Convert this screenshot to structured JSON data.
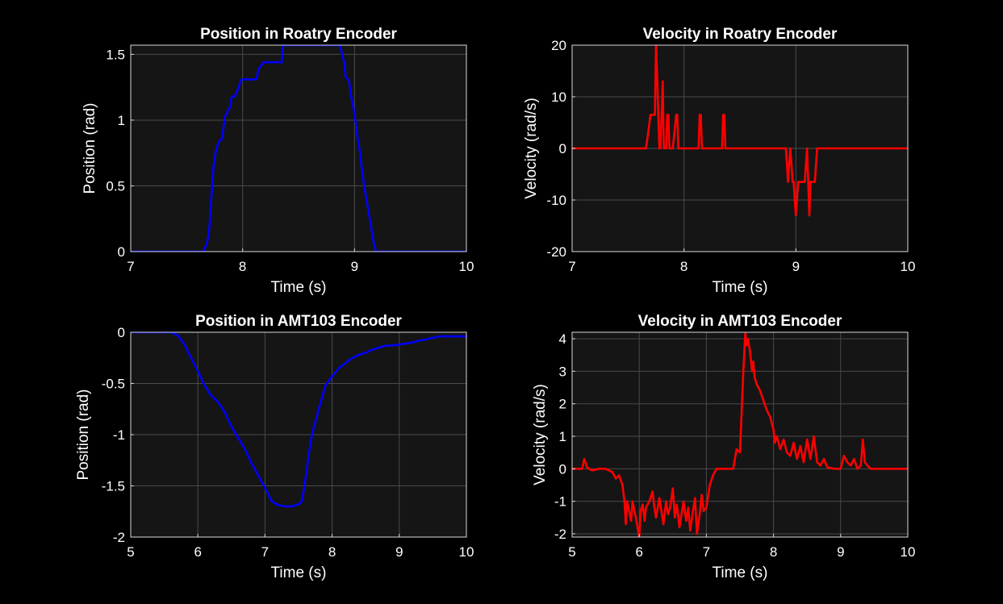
{
  "chart_data": [
    {
      "type": "line",
      "title": "Position in Roatry Encoder",
      "xlabel": "Time (s)",
      "ylabel": "Position (rad)",
      "xlim": [
        7,
        10
      ],
      "ylim": [
        0,
        1.57
      ],
      "xticks": [
        "7",
        "8",
        "9",
        "10"
      ],
      "yticks": [
        "0",
        "0.5",
        "1",
        "1.5"
      ],
      "grid": true,
      "color": "#0000ff",
      "series": [
        {
          "x": [
            7.0,
            7.65,
            7.68,
            7.7,
            7.72,
            7.74,
            7.76,
            7.78,
            7.8,
            7.81,
            7.82,
            7.83,
            7.84,
            7.85,
            7.86,
            7.87,
            7.89,
            7.9,
            7.91,
            7.93,
            7.95,
            7.97,
            7.98,
            8.0,
            8.01,
            8.12,
            8.13,
            8.14,
            8.15,
            8.17,
            8.19,
            8.35,
            8.36,
            8.87,
            8.89,
            8.91,
            8.92,
            8.95,
            8.97,
            9.0,
            9.03,
            9.05,
            9.07,
            9.09,
            9.11,
            9.13,
            9.15,
            9.17,
            9.19,
            10.0
          ],
          "y": [
            0,
            0,
            0.06,
            0.15,
            0.4,
            0.65,
            0.76,
            0.82,
            0.85,
            0.85,
            0.87,
            0.95,
            1.02,
            1.04,
            1.05,
            1.08,
            1.1,
            1.17,
            1.18,
            1.18,
            1.22,
            1.26,
            1.3,
            1.31,
            1.31,
            1.31,
            1.34,
            1.38,
            1.4,
            1.42,
            1.44,
            1.44,
            1.57,
            1.57,
            1.5,
            1.43,
            1.33,
            1.3,
            1.18,
            1.05,
            0.85,
            0.75,
            0.6,
            0.48,
            0.38,
            0.28,
            0.18,
            0.08,
            0,
            0
          ]
        }
      ]
    },
    {
      "type": "line",
      "title": "Velocity in Roatry Encoder",
      "xlabel": "Time (s)",
      "ylabel": "Velocity (rad/s)",
      "xlim": [
        7,
        10
      ],
      "ylim": [
        -20,
        20
      ],
      "xticks": [
        "7",
        "8",
        "9",
        "10"
      ],
      "yticks": [
        "-20",
        "-10",
        "0",
        "10",
        "20"
      ],
      "grid": true,
      "color": "#ff0000",
      "series": [
        {
          "x": [
            7.0,
            7.66,
            7.68,
            7.7,
            7.72,
            7.74,
            7.75,
            7.76,
            7.77,
            7.78,
            7.79,
            7.8,
            7.81,
            7.82,
            7.83,
            7.84,
            7.85,
            7.86,
            7.87,
            7.88,
            7.89,
            7.9,
            7.93,
            7.94,
            7.95,
            7.96,
            8.13,
            8.14,
            8.15,
            8.16,
            8.34,
            8.35,
            8.36,
            8.37,
            8.91,
            8.92,
            8.93,
            8.94,
            8.95,
            8.96,
            8.97,
            8.98,
            8.99,
            9.0,
            9.01,
            9.02,
            9.03,
            9.04,
            9.07,
            9.08,
            9.09,
            9.1,
            9.11,
            9.12,
            9.13,
            9.14,
            9.17,
            9.18,
            9.19,
            10.0
          ],
          "y": [
            0,
            0,
            3,
            6.5,
            6.5,
            6.5,
            20,
            14,
            6.5,
            0,
            0,
            6.5,
            13,
            0,
            0,
            0,
            6.5,
            6.5,
            0,
            0,
            0,
            0,
            6.5,
            6.5,
            0,
            0,
            0,
            6.5,
            6.5,
            0,
            0,
            6.5,
            6.5,
            0,
            0,
            -3,
            -6.5,
            -3,
            0,
            -3,
            -6.5,
            -6.5,
            -10,
            -13,
            -10,
            -6.5,
            -6.5,
            -6.5,
            -6.5,
            -6.5,
            -3,
            0,
            -6.5,
            -13,
            -6.5,
            -6.5,
            -6.5,
            -3,
            0,
            0
          ]
        }
      ]
    },
    {
      "type": "line",
      "title": "Position in AMT103 Encoder",
      "xlabel": "Time (s)",
      "ylabel": "Position (rad)",
      "xlim": [
        5,
        10
      ],
      "ylim": [
        -2,
        0
      ],
      "xticks": [
        "5",
        "6",
        "7",
        "8",
        "9",
        "10"
      ],
      "yticks": [
        "-2",
        "-1.5",
        "-1",
        "-0.5",
        "0"
      ],
      "grid": true,
      "color": "#0000ff",
      "series": [
        {
          "x": [
            5.0,
            5.3,
            5.6,
            5.7,
            5.8,
            5.9,
            6.0,
            6.1,
            6.2,
            6.3,
            6.4,
            6.5,
            6.6,
            6.7,
            6.8,
            6.9,
            7.0,
            7.1,
            7.2,
            7.3,
            7.4,
            7.5,
            7.55,
            7.6,
            7.65,
            7.7,
            7.8,
            7.9,
            8.0,
            8.1,
            8.2,
            8.3,
            8.4,
            8.5,
            8.6,
            8.7,
            8.8,
            8.9,
            9.0,
            9.2,
            9.3,
            9.4,
            9.6,
            10.0
          ],
          "y": [
            0,
            0,
            0,
            -0.03,
            -0.12,
            -0.25,
            -0.38,
            -0.52,
            -0.62,
            -0.68,
            -0.78,
            -0.92,
            -1.03,
            -1.14,
            -1.28,
            -1.4,
            -1.52,
            -1.65,
            -1.69,
            -1.7,
            -1.7,
            -1.68,
            -1.65,
            -1.45,
            -1.2,
            -1.0,
            -0.75,
            -0.52,
            -0.43,
            -0.35,
            -0.3,
            -0.25,
            -0.22,
            -0.2,
            -0.17,
            -0.15,
            -0.13,
            -0.13,
            -0.12,
            -0.1,
            -0.08,
            -0.07,
            -0.04,
            -0.04
          ]
        }
      ]
    },
    {
      "type": "line",
      "title": "Velocity in AMT103 Encoder",
      "xlabel": "Time (s)",
      "ylabel": "Velocity (rad/s)",
      "xlim": [
        5,
        10
      ],
      "ylim": [
        -2.1,
        4.2
      ],
      "xticks": [
        "5",
        "6",
        "7",
        "8",
        "9",
        "10"
      ],
      "yticks": [
        "-2",
        "-1",
        "0",
        "1",
        "2",
        "3",
        "4"
      ],
      "grid": true,
      "color": "#ff0000",
      "series": [
        {
          "x": [
            5.0,
            5.15,
            5.18,
            5.2,
            5.22,
            5.25,
            5.3,
            5.4,
            5.5,
            5.6,
            5.65,
            5.7,
            5.75,
            5.78,
            5.8,
            5.82,
            5.85,
            5.88,
            5.9,
            5.92,
            5.95,
            6.0,
            6.02,
            6.05,
            6.08,
            6.1,
            6.15,
            6.2,
            6.22,
            6.25,
            6.3,
            6.33,
            6.36,
            6.4,
            6.43,
            6.46,
            6.5,
            6.53,
            6.56,
            6.6,
            6.63,
            6.66,
            6.7,
            6.73,
            6.76,
            6.8,
            6.83,
            6.86,
            6.9,
            6.93,
            6.96,
            7.0,
            7.05,
            7.1,
            7.15,
            7.2,
            7.3,
            7.4,
            7.45,
            7.5,
            7.52,
            7.55,
            7.58,
            7.6,
            7.62,
            7.65,
            7.68,
            7.7,
            7.72,
            7.75,
            7.8,
            7.85,
            7.9,
            7.95,
            8.0,
            8.02,
            8.05,
            8.1,
            8.15,
            8.2,
            8.25,
            8.3,
            8.35,
            8.4,
            8.45,
            8.5,
            8.55,
            8.6,
            8.65,
            8.7,
            8.75,
            8.8,
            8.9,
            9.0,
            9.05,
            9.1,
            9.15,
            9.2,
            9.25,
            9.3,
            9.33,
            9.36,
            9.4,
            9.45,
            10.0
          ],
          "y": [
            0,
            0,
            0.3,
            0.2,
            0.05,
            0,
            -0.05,
            0,
            0,
            -0.1,
            -0.3,
            -0.2,
            -0.5,
            -1.0,
            -1.7,
            -1.0,
            -1.3,
            -1.6,
            -1.0,
            -1.2,
            -1.5,
            -2.1,
            -1.3,
            -1.1,
            -1.6,
            -1.2,
            -1.0,
            -0.7,
            -1.1,
            -1.5,
            -0.9,
            -1.3,
            -1.7,
            -1.0,
            -1.4,
            -1.2,
            -0.6,
            -1.5,
            -1.1,
            -1.8,
            -1.4,
            -1.0,
            -1.6,
            -1.2,
            -1.9,
            -1.3,
            -0.9,
            -2.0,
            -1.4,
            -0.8,
            -1.3,
            -1.2,
            -0.5,
            -0.2,
            0,
            0,
            0,
            0,
            0.6,
            0.5,
            1.5,
            3.0,
            4.2,
            3.8,
            4.0,
            3.6,
            3.0,
            3.3,
            2.8,
            2.6,
            2.4,
            2.1,
            1.8,
            1.6,
            1.2,
            0.8,
            1.0,
            0.6,
            0.9,
            0.5,
            0.4,
            0.8,
            0.3,
            0.7,
            0.2,
            0.9,
            0.3,
            1.0,
            0.2,
            0.1,
            0.3,
            0.05,
            0,
            0,
            0.4,
            0.2,
            0.1,
            0.3,
            0,
            0.1,
            0.9,
            0.2,
            0.1,
            0,
            0
          ]
        }
      ]
    }
  ]
}
